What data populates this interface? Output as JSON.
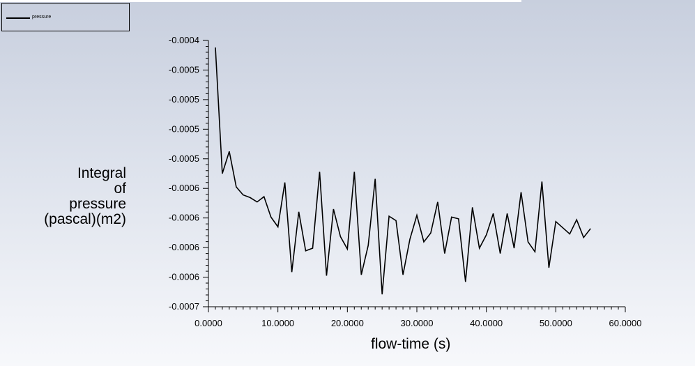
{
  "legend": {
    "items": [
      {
        "label": "pressure"
      }
    ]
  },
  "chart_data": {
    "type": "line",
    "title": "",
    "xlabel": "flow-time (s)",
    "ylabel_lines": [
      "Integral",
      "of",
      "pressure",
      "(pascal)(m2)"
    ],
    "xlim": [
      0,
      60
    ],
    "ylim": [
      -0.0007,
      -0.0004
    ],
    "x_ticks": [
      "0.0000",
      "10.0000",
      "20.0000",
      "30.0000",
      "40.0000",
      "50.0000",
      "60.0000"
    ],
    "y_ticks": [
      "-0.0004",
      "-0.0005",
      "-0.0005",
      "-0.0005",
      "-0.0005",
      "-0.0006",
      "-0.0006",
      "-0.0006",
      "-0.0006",
      "-0.0007"
    ],
    "grid": false,
    "legend_position": "top-left",
    "series": [
      {
        "name": "pressure",
        "color": "#000000",
        "x": [
          1,
          2,
          3,
          4,
          5,
          6,
          7,
          8,
          9,
          10,
          11,
          12,
          13,
          14,
          15,
          16,
          17,
          18,
          19,
          20,
          21,
          22,
          23,
          24,
          25,
          26,
          27,
          28,
          29,
          30,
          31,
          32,
          33,
          34,
          35,
          36,
          37,
          38,
          39,
          40,
          41,
          42,
          43,
          44,
          45,
          46,
          47,
          48,
          49,
          50,
          51,
          52,
          53,
          54,
          55
        ],
        "y": [
          -0.000408,
          -0.00055,
          -0.000525,
          -0.000565,
          -0.000574,
          -0.000577,
          -0.000582,
          -0.000576,
          -0.000599,
          -0.00061,
          -0.00056,
          -0.000661,
          -0.000593,
          -0.000637,
          -0.000634,
          -0.000548,
          -0.000665,
          -0.00059,
          -0.000621,
          -0.000635,
          -0.000548,
          -0.000664,
          -0.000631,
          -0.000556,
          -0.000686,
          -0.000598,
          -0.000603,
          -0.000664,
          -0.000624,
          -0.000597,
          -0.000627,
          -0.000617,
          -0.000582,
          -0.00064,
          -0.000599,
          -0.000601,
          -0.000672,
          -0.000588,
          -0.000634,
          -0.000619,
          -0.000595,
          -0.00064,
          -0.000595,
          -0.000634,
          -0.000571,
          -0.000627,
          -0.000638,
          -0.000559,
          -0.000656,
          -0.000604,
          -0.000611,
          -0.000618,
          -0.000602,
          -0.000622,
          -0.000612
        ]
      }
    ]
  }
}
